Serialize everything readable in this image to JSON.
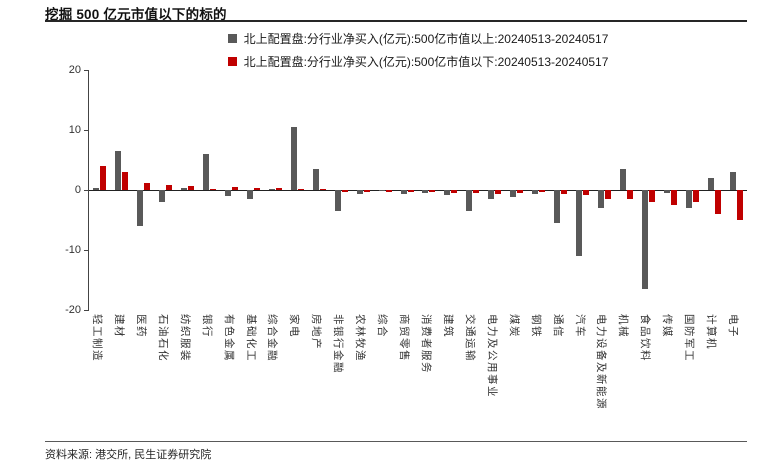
{
  "header": {
    "title": "挖掘 500 亿元市值以下的标的"
  },
  "footer": {
    "source": "资料来源: 港交所, 民生证券研究院"
  },
  "chart_data": {
    "type": "bar",
    "title": "挖掘 500 亿元市值以下的标的",
    "xlabel": "",
    "ylabel": "",
    "ylim": [
      -20,
      20
    ],
    "yticks": [
      20,
      10,
      0,
      -10,
      -20
    ],
    "grid": false,
    "legend_position": "top",
    "categories": [
      "轻工制造",
      "建材",
      "医药",
      "石油石化",
      "纺织服装",
      "银行",
      "有色金属",
      "基础化工",
      "综合金融",
      "家电",
      "房地产",
      "非银行金融",
      "农林牧渔",
      "综合",
      "商贸零售",
      "消费者服务",
      "建筑",
      "交通运输",
      "电力及公用事业",
      "煤炭",
      "钢铁",
      "通信",
      "汽车",
      "电力设备及新能源",
      "机械",
      "食品饮料",
      "传媒",
      "国防军工",
      "计算机",
      "电子"
    ],
    "series": [
      {
        "name": "北上配置盘:分行业净买入(亿元):500亿市值以上:20240513-20240517",
        "color": "#595959",
        "values": [
          0.3,
          6.5,
          -6.0,
          -2.0,
          0.3,
          6.0,
          -1.0,
          -1.5,
          0.1,
          10.5,
          3.5,
          -3.5,
          -0.6,
          -0.2,
          -0.6,
          -0.5,
          -0.8,
          -3.5,
          -1.5,
          -1.2,
          -0.6,
          -5.5,
          -11.0,
          -3.0,
          3.5,
          -16.5,
          -0.5,
          -3.0,
          2.0,
          3.0
        ]
      },
      {
        "name": "北上配置盘:分行业净买入(亿元):500亿市值以下:20240513-20240517",
        "color": "#c00000",
        "values": [
          4.0,
          3.0,
          1.2,
          0.8,
          0.6,
          0.2,
          0.5,
          0.3,
          0.4,
          0.2,
          0.2,
          -0.3,
          -0.3,
          -0.4,
          -0.4,
          -0.3,
          -0.5,
          -0.5,
          -0.6,
          -0.5,
          -0.4,
          -0.6,
          -0.8,
          -1.5,
          -1.5,
          -2.0,
          -2.5,
          -2.0,
          -4.0,
          -5.0
        ]
      }
    ]
  }
}
